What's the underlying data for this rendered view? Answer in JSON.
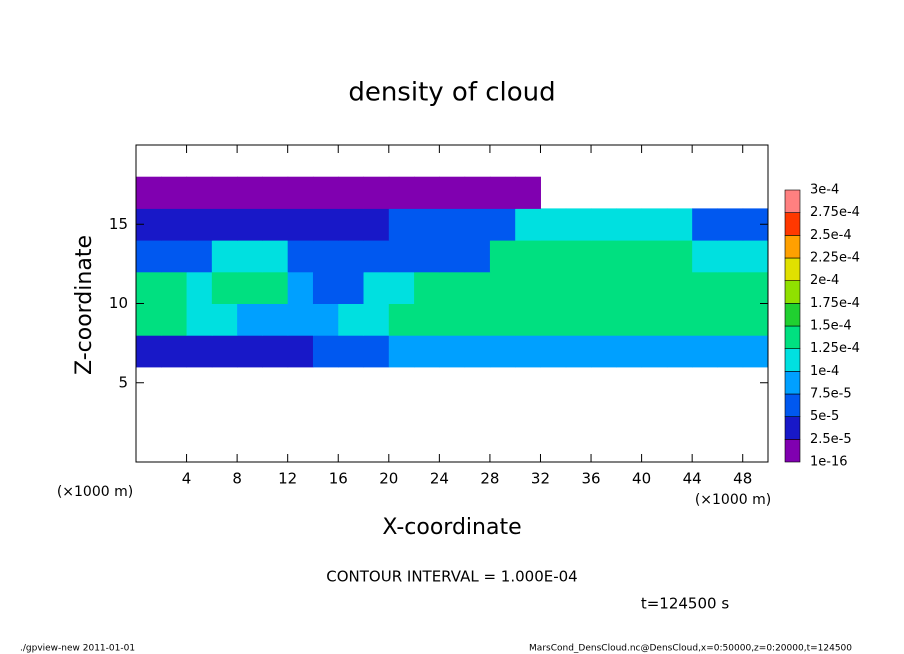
{
  "chart_data": {
    "type": "contour",
    "title": "density of cloud",
    "x_label": "X-coordinate",
    "y_label": "Z-coordinate",
    "x_unit": "(×1000 m)",
    "y_unit": "(×1000 m)",
    "contour_note": "CONTOUR INTERVAL = 1.000E-04",
    "time_label": "t=124500 s",
    "footer_left": "./gpview-new   2011-01-01",
    "footer_right": "MarsCond_DensCloud.nc@DensCloud,x=0:50000,z=0:20000,t=124500",
    "xlim": [
      0,
      50
    ],
    "ylim": [
      0,
      20
    ],
    "xticks": [
      4,
      8,
      12,
      16,
      20,
      24,
      28,
      32,
      36,
      40,
      44,
      48
    ],
    "yticks": [
      5,
      10,
      15
    ],
    "x": [
      1,
      3,
      5,
      7,
      9,
      11,
      13,
      15,
      17,
      19,
      21,
      23,
      25,
      27,
      29,
      31,
      33,
      35,
      37,
      39,
      41,
      43,
      45,
      47,
      49
    ],
    "y": [
      1,
      3,
      5,
      7,
      9,
      11,
      13,
      15,
      17,
      19
    ],
    "values": [
      [
        null,
        null,
        null,
        null,
        null,
        null,
        null,
        null,
        null,
        null,
        null,
        null,
        null,
        null,
        null,
        null,
        null,
        null,
        null,
        null,
        null,
        null,
        null,
        null,
        null
      ],
      [
        null,
        null,
        null,
        null,
        null,
        null,
        null,
        null,
        null,
        null,
        null,
        null,
        null,
        null,
        null,
        null,
        null,
        null,
        null,
        null,
        null,
        null,
        null,
        null,
        null
      ],
      [
        null,
        null,
        null,
        null,
        null,
        null,
        null,
        null,
        null,
        null,
        null,
        null,
        null,
        null,
        null,
        null,
        null,
        null,
        null,
        null,
        null,
        null,
        null,
        null,
        null
      ],
      [
        4e-05,
        4e-05,
        4e-05,
        4e-05,
        4e-05,
        4e-05,
        4e-05,
        6e-05,
        6e-05,
        6e-05,
        9e-05,
        9e-05,
        9e-05,
        9e-05,
        9e-05,
        9e-05,
        9e-05,
        9e-05,
        9e-05,
        9e-05,
        9e-05,
        9e-05,
        8e-05,
        8e-05,
        8e-05
      ],
      [
        0.00013,
        0.00013,
        0.00011,
        0.00011,
        9e-05,
        9e-05,
        9e-05,
        8e-05,
        0.00012,
        0.00012,
        0.000135,
        0.000135,
        0.000135,
        0.000135,
        0.000135,
        0.000135,
        0.000135,
        0.000135,
        0.000135,
        0.000135,
        0.000135,
        0.000135,
        0.000135,
        0.000135,
        0.000135
      ],
      [
        0.00014,
        0.00014,
        0.0001,
        0.00013,
        0.00013,
        0.00013,
        8e-05,
        6e-05,
        6e-05,
        0.0001,
        0.0001,
        0.000145,
        0.000145,
        0.000145,
        0.000145,
        0.000145,
        0.000145,
        0.000145,
        0.000145,
        0.000145,
        0.000145,
        0.000145,
        0.000145,
        0.000145,
        0.000145
      ],
      [
        5e-05,
        5e-05,
        5e-05,
        0.00012,
        0.00012,
        0.00012,
        6e-05,
        6e-05,
        6e-05,
        7e-05,
        7e-05,
        7e-05,
        7e-05,
        7e-05,
        0.000135,
        0.000135,
        0.000135,
        0.000135,
        0.000135,
        0.000135,
        0.000135,
        0.000135,
        0.0001,
        0.0001,
        0.0001
      ],
      [
        3e-05,
        3e-05,
        3e-05,
        3e-05,
        3e-05,
        4e-05,
        4e-05,
        4e-05,
        4e-05,
        4e-05,
        6e-05,
        6e-05,
        6e-05,
        6e-05,
        6e-05,
        0.00011,
        0.00011,
        0.00011,
        0.00011,
        0.00011,
        0.00011,
        0.00011,
        5e-05,
        5e-05,
        5e-05
      ],
      [
        1e-05,
        1e-05,
        1e-05,
        1e-05,
        1e-05,
        1e-05,
        1e-05,
        1e-05,
        1e-05,
        1e-05,
        1e-05,
        1e-05,
        1e-05,
        1e-05,
        1e-05,
        1e-05,
        null,
        null,
        null,
        null,
        null,
        null,
        null,
        null,
        null
      ],
      [
        null,
        null,
        null,
        null,
        null,
        null,
        null,
        null,
        null,
        null,
        null,
        null,
        null,
        null,
        null,
        null,
        null,
        null,
        null,
        null,
        null,
        null,
        null,
        null,
        null
      ]
    ],
    "levels": [
      {
        "value": 1e-16,
        "label": "1e-16"
      },
      {
        "value": 2.5e-05,
        "label": "2.5e-5"
      },
      {
        "value": 5e-05,
        "label": "5e-5"
      },
      {
        "value": 7.5e-05,
        "label": "7.5e-5"
      },
      {
        "value": 0.0001,
        "label": "1e-4"
      },
      {
        "value": 0.000125,
        "label": "1.25e-4"
      },
      {
        "value": 0.00015,
        "label": "1.5e-4"
      },
      {
        "value": 0.000175,
        "label": "1.75e-4"
      },
      {
        "value": 0.0002,
        "label": "2e-4"
      },
      {
        "value": 0.000225,
        "label": "2.25e-4"
      },
      {
        "value": 0.00025,
        "label": "2.5e-4"
      },
      {
        "value": 0.000275,
        "label": "2.75e-4"
      },
      {
        "value": 0.0003,
        "label": "3e-4"
      }
    ],
    "colors": [
      "#8000b0",
      "#1818c8",
      "#0058f0",
      "#00a0ff",
      "#00e0e0",
      "#00e080",
      "#20d030",
      "#90e000",
      "#e0e000",
      "#ffa000",
      "#ff3800",
      "#ff8080"
    ]
  }
}
